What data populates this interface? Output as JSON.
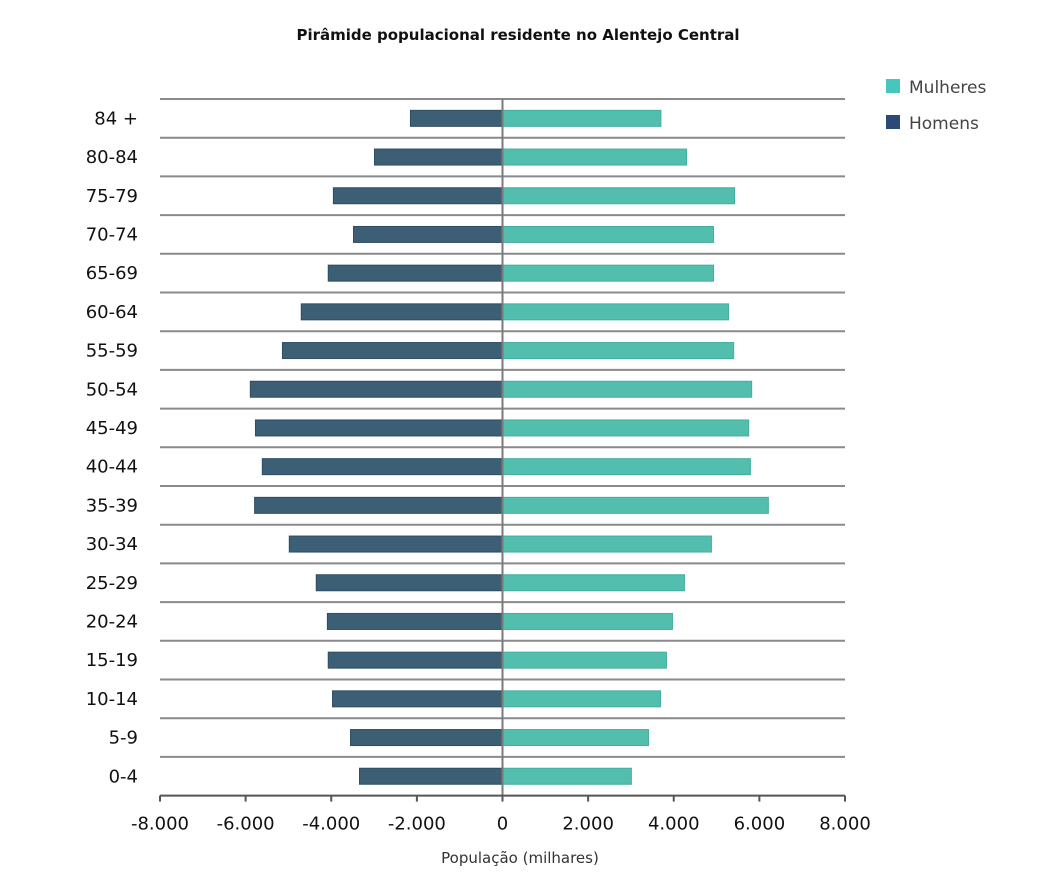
{
  "chart_data": {
    "type": "bar",
    "orientation": "horizontal-pyramid",
    "title": "Pirâmide populacional residente no Alentejo Central",
    "xlabel": "População (milhares)",
    "ylabel": "",
    "xlim": [
      -8000,
      8000
    ],
    "xticks": [
      -8000,
      -6000,
      -4000,
      -2000,
      0,
      2000,
      4000,
      6000,
      8000
    ],
    "xtick_labels": [
      "-8.000",
      "-6.000",
      "-4.000",
      "-2.000",
      "0",
      "2.000",
      "4.000",
      "6.000",
      "8.000"
    ],
    "categories": [
      "84 +",
      "80-84",
      "75-79",
      "70-74",
      "65-69",
      "60-64",
      "55-59",
      "50-54",
      "45-49",
      "40-44",
      "35-39",
      "30-34",
      "25-29",
      "20-24",
      "15-19",
      "10-14",
      "5-9",
      "0-4"
    ],
    "series": [
      {
        "name": "Mulheres",
        "color": "#52bfae",
        "legend_color": "#45c8bb",
        "values": [
          3700,
          4300,
          5420,
          4930,
          4930,
          5280,
          5400,
          5820,
          5750,
          5790,
          6210,
          4880,
          4250,
          3970,
          3830,
          3690,
          3410,
          3010
        ]
      },
      {
        "name": "Homens",
        "color": "#3d5f75",
        "legend_color": "#2b4a78",
        "values": [
          -2150,
          -2990,
          -3950,
          -3480,
          -4070,
          -4700,
          -5140,
          -5890,
          -5770,
          -5610,
          -5790,
          -4980,
          -4350,
          -4090,
          -4070,
          -3970,
          -3550,
          -3340
        ]
      }
    ],
    "legend_position": "top-right",
    "grid": true
  }
}
